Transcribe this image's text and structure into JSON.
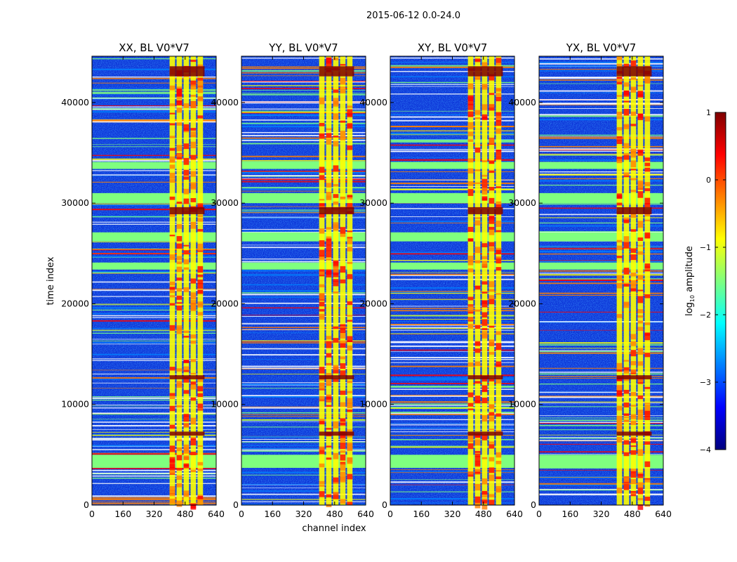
{
  "figure": {
    "suptitle": "2015-06-12 0.0-24.0",
    "xlabel": "channel index",
    "ylabel": "time index",
    "colorbar_label": "log",
    "colorbar_label_sub": "10",
    "colorbar_label_rest": " amplitude",
    "colormap": "jet",
    "colormap_stops": [
      "#00007f",
      "#0000ff",
      "#007fff",
      "#00ffff",
      "#7fff7f",
      "#ffff00",
      "#ff7f00",
      "#ff0000",
      "#7f0000"
    ]
  },
  "chart_data": {
    "type": "heatmap",
    "panels": [
      {
        "title": "XX, BL V0*V7",
        "polarization": "XX"
      },
      {
        "title": "YY, BL V0*V7",
        "polarization": "YY"
      },
      {
        "title": "XY, BL V0*V7",
        "polarization": "XY"
      },
      {
        "title": "YX, BL V0*V7",
        "polarization": "YX"
      }
    ],
    "x_label": "channel index",
    "y_label": "time index",
    "xlim": [
      0,
      640
    ],
    "ylim": [
      0,
      44600
    ],
    "x_ticks": [
      0,
      160,
      320,
      480,
      640
    ],
    "x_tick_labels": [
      "0",
      "160",
      "320",
      "480",
      "640"
    ],
    "y_ticks": [
      0,
      10000,
      20000,
      30000,
      40000
    ],
    "y_tick_labels": [
      "0",
      "10000",
      "20000",
      "30000",
      "40000"
    ],
    "colorbar": {
      "label": "log10 amplitude",
      "range": [
        -4,
        1
      ],
      "ticks": [
        1,
        0,
        -1,
        -2,
        -3,
        -4
      ],
      "tick_labels": [
        "1",
        "0",
        "−1",
        "−2",
        "−3",
        "−4"
      ]
    },
    "flagged_time_ranges": [
      [
        3700,
        5000
      ],
      [
        30000,
        31000
      ],
      [
        26200,
        27100
      ],
      [
        33400,
        34100
      ],
      [
        23400,
        24100
      ]
    ],
    "bright_channel_range": [
      400,
      580
    ],
    "strong_time_ranges": [
      [
        12500,
        12900
      ],
      [
        28900,
        29600
      ],
      [
        6900,
        7300
      ],
      [
        42600,
        43600
      ]
    ]
  }
}
